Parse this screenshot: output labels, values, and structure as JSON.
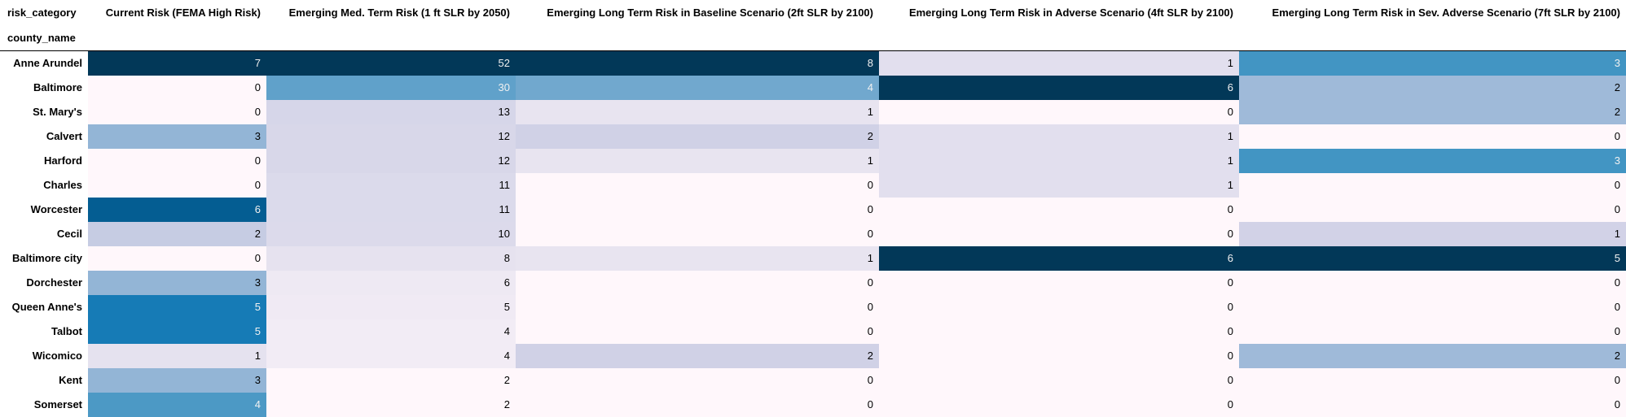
{
  "table": {
    "columns_label": "risk_category",
    "index_label": "county_name",
    "headers": [
      "Current Risk (FEMA High Risk)",
      "Emerging Med. Term Risk (1 ft SLR by 2050)",
      "Emerging Long Term Risk in Baseline Scenario (2ft SLR by 2100)",
      "Emerging Long Term Risk in Adverse Scenario (4ft SLR by 2100)",
      "Emerging Long Term Risk in Sev. Adverse Scenario (7ft SLR by 2100)"
    ],
    "rows": [
      {
        "county": "Anne Arundel",
        "values": [
          "7",
          "52",
          "8",
          "1",
          "3"
        ]
      },
      {
        "county": "Baltimore",
        "values": [
          "0",
          "30",
          "4",
          "6",
          "2"
        ]
      },
      {
        "county": "St. Mary's",
        "values": [
          "0",
          "13",
          "1",
          "0",
          "2"
        ]
      },
      {
        "county": "Calvert",
        "values": [
          "3",
          "12",
          "2",
          "1",
          "0"
        ]
      },
      {
        "county": "Harford",
        "values": [
          "0",
          "12",
          "1",
          "1",
          "3"
        ]
      },
      {
        "county": "Charles",
        "values": [
          "0",
          "11",
          "0",
          "1",
          "0"
        ]
      },
      {
        "county": "Worcester",
        "values": [
          "6",
          "11",
          "0",
          "0",
          "0"
        ]
      },
      {
        "county": "Cecil",
        "values": [
          "2",
          "10",
          "0",
          "0",
          "1"
        ]
      },
      {
        "county": "Baltimore city",
        "values": [
          "0",
          "8",
          "1",
          "6",
          "5"
        ]
      },
      {
        "county": "Dorchester",
        "values": [
          "3",
          "6",
          "0",
          "0",
          "0"
        ]
      },
      {
        "county": "Queen Anne's",
        "values": [
          "5",
          "5",
          "0",
          "0",
          "0"
        ]
      },
      {
        "county": "Talbot",
        "values": [
          "5",
          "4",
          "0",
          "0",
          "0"
        ]
      },
      {
        "county": "Wicomico",
        "values": [
          "1",
          "4",
          "2",
          "0",
          "2"
        ]
      },
      {
        "county": "Kent",
        "values": [
          "3",
          "2",
          "0",
          "0",
          "0"
        ]
      },
      {
        "county": "Somerset",
        "values": [
          "4",
          "2",
          "0",
          "0",
          "0"
        ]
      }
    ],
    "cell_colors": [
      [
        "#023858",
        "#023858",
        "#023858",
        "#e2dfee",
        "#4295c3"
      ],
      [
        "#fff7fb",
        "#60a1ca",
        "#71a8ce",
        "#023858",
        "#9fbad9"
      ],
      [
        "#fff7fb",
        "#d6d6e9",
        "#e8e4f0",
        "#fff7fb",
        "#9fbad9"
      ],
      [
        "#93b5d6",
        "#d8d7e9",
        "#d0d1e6",
        "#e2dfee",
        "#fff7fb"
      ],
      [
        "#fff7fb",
        "#d8d7e9",
        "#e8e4f0",
        "#e2dfee",
        "#4295c3"
      ],
      [
        "#fff7fb",
        "#dbdaeb",
        "#fff7fb",
        "#e2dfee",
        "#fff7fb"
      ],
      [
        "#045d92",
        "#dbdaeb",
        "#fff7fb",
        "#fff7fb",
        "#fff7fb"
      ],
      [
        "#c6cce3",
        "#dcdaeb",
        "#fff7fb",
        "#fff7fb",
        "#d2d2e7"
      ],
      [
        "#fff7fb",
        "#e6e2ef",
        "#e8e4f0",
        "#023858",
        "#023858"
      ],
      [
        "#93b5d6",
        "#eee9f3",
        "#fff7fb",
        "#fff7fb",
        "#fff7fb"
      ],
      [
        "#167bb6",
        "#f0eaf4",
        "#fff7fb",
        "#fff7fb",
        "#fff7fb"
      ],
      [
        "#167bb6",
        "#f2ecf5",
        "#fff7fb",
        "#fff7fb",
        "#fff7fb"
      ],
      [
        "#e5e2ef",
        "#f2ecf5",
        "#d0d1e6",
        "#fff7fb",
        "#9fbad9"
      ],
      [
        "#93b5d6",
        "#fff7fb",
        "#fff7fb",
        "#fff7fb",
        "#fff7fb"
      ],
      [
        "#4c99c5",
        "#fff7fb",
        "#fff7fb",
        "#fff7fb",
        "#fff7fb"
      ]
    ],
    "text_colors": [
      [
        "#f1f1f1",
        "#f1f1f1",
        "#f1f1f1",
        "#000000",
        "#f1f1f1"
      ],
      [
        "#000000",
        "#f1f1f1",
        "#f1f1f1",
        "#f1f1f1",
        "#000000"
      ],
      [
        "#000000",
        "#000000",
        "#000000",
        "#000000",
        "#000000"
      ],
      [
        "#000000",
        "#000000",
        "#000000",
        "#000000",
        "#000000"
      ],
      [
        "#000000",
        "#000000",
        "#000000",
        "#000000",
        "#f1f1f1"
      ],
      [
        "#000000",
        "#000000",
        "#000000",
        "#000000",
        "#000000"
      ],
      [
        "#f1f1f1",
        "#000000",
        "#000000",
        "#000000",
        "#000000"
      ],
      [
        "#000000",
        "#000000",
        "#000000",
        "#000000",
        "#000000"
      ],
      [
        "#000000",
        "#000000",
        "#000000",
        "#f1f1f1",
        "#f1f1f1"
      ],
      [
        "#000000",
        "#000000",
        "#000000",
        "#000000",
        "#000000"
      ],
      [
        "#f1f1f1",
        "#000000",
        "#000000",
        "#000000",
        "#000000"
      ],
      [
        "#f1f1f1",
        "#000000",
        "#000000",
        "#000000",
        "#000000"
      ],
      [
        "#000000",
        "#000000",
        "#000000",
        "#000000",
        "#000000"
      ],
      [
        "#000000",
        "#000000",
        "#000000",
        "#000000",
        "#000000"
      ],
      [
        "#f1f1f1",
        "#000000",
        "#000000",
        "#000000",
        "#000000"
      ]
    ]
  }
}
